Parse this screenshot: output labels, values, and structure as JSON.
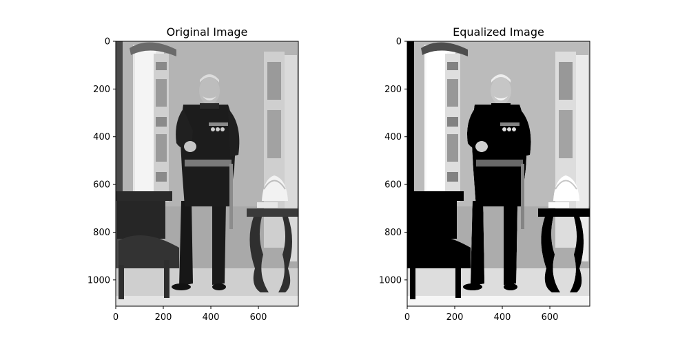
{
  "chart_data": [
    {
      "type": "image",
      "title": "Original Image",
      "xticks": [
        0,
        200,
        400,
        600
      ],
      "yticks": [
        0,
        200,
        400,
        600,
        800,
        1000
      ],
      "xlim": [
        0,
        768
      ],
      "ylim": [
        1110,
        0
      ],
      "grid": false,
      "tone": "original"
    },
    {
      "type": "image",
      "title": "Equalized Image",
      "xticks": [
        0,
        200,
        400,
        600
      ],
      "yticks": [
        0,
        200,
        400,
        600,
        800,
        1000
      ],
      "xlim": [
        0,
        768
      ],
      "ylim": [
        1110,
        0
      ],
      "grid": false,
      "tone": "equalized"
    }
  ]
}
